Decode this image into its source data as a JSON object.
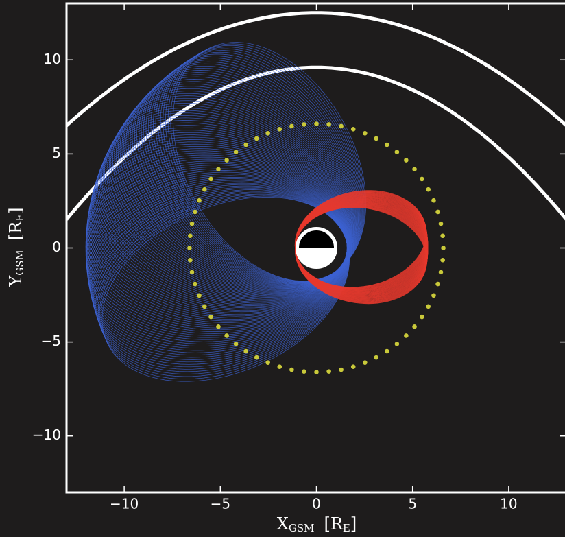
{
  "chart_data": {
    "type": "orbit-plot",
    "xlabel": [
      "X",
      "GSM",
      "[R",
      "E",
      "]"
    ],
    "ylabel": [
      "Y",
      "GSM",
      "[R",
      "E",
      "]"
    ],
    "xlim": [
      -13,
      13
    ],
    "ylim": [
      -13,
      13
    ],
    "xticks": [
      {
        "value": -10,
        "label": "−10"
      },
      {
        "value": -5,
        "label": "−5"
      },
      0,
      5,
      10
    ],
    "yticks": [
      {
        "value": -10,
        "label": "−10"
      },
      {
        "value": -5,
        "label": "−5"
      },
      0,
      5,
      10
    ],
    "magnetopause": [
      {
        "nose": 12.5,
        "k": 28.2
      },
      {
        "nose": 9.6,
        "k": 20.9
      }
    ],
    "orbits": [
      {
        "apogee": 12,
        "perigee": 1.6,
        "angle_start": 118,
        "angle_end": 205,
        "count": 80,
        "color": "#3d63d4"
      },
      {
        "apogee": 5.8,
        "perigee": 1.1,
        "angle_start": -10,
        "angle_end": 12,
        "count": 60,
        "color": "#e83a2e"
      }
    ],
    "geosynchronous": {
      "radius": 6.6,
      "dots": 64,
      "color": "#c9c93a"
    },
    "earth_radius": 1
  }
}
